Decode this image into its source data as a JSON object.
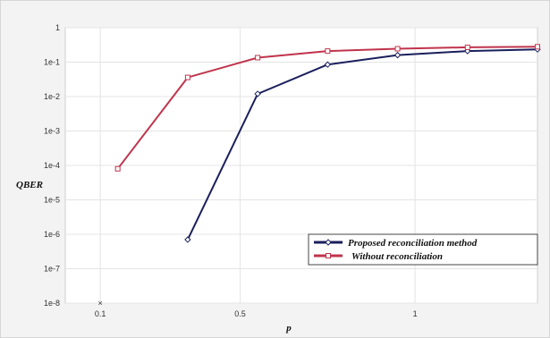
{
  "chart_data": {
    "type": "line",
    "title": "",
    "xlabel": "p",
    "ylabel": "QBER",
    "xlim": [
      0.0,
      1.35
    ],
    "y_scale": "log",
    "ylim": [
      1e-08,
      1
    ],
    "grid": true,
    "x_ticks": [
      {
        "value": 0.1,
        "label": "0.1"
      },
      {
        "value": 0.5,
        "label": "0.5"
      },
      {
        "value": 1.0,
        "label": "1"
      }
    ],
    "y_ticks": [
      {
        "value": 1,
        "label": "1"
      },
      {
        "value": 0.1,
        "label": "1e-1"
      },
      {
        "value": 0.01,
        "label": "1e-2"
      },
      {
        "value": 0.001,
        "label": "1e-3"
      },
      {
        "value": 0.0001,
        "label": "1e-4"
      },
      {
        "value": 1e-05,
        "label": "1e-5"
      },
      {
        "value": 1e-06,
        "label": "1e-6"
      },
      {
        "value": 1e-07,
        "label": "1e-7"
      },
      {
        "value": 1e-08,
        "label": "1e-8"
      }
    ],
    "legend_position": "bottom-right",
    "series": [
      {
        "name": "Proposed reconciliation method",
        "color": "#1a1f5c",
        "marker": "diamond",
        "x": [
          0.35,
          0.55,
          0.75,
          0.95,
          1.15,
          1.35
        ],
        "y": [
          7e-07,
          0.012,
          0.085,
          0.16,
          0.21,
          0.235
        ]
      },
      {
        "name": "Without reconciliation",
        "color": "#c0344c",
        "marker": "square",
        "x": [
          0.15,
          0.35,
          0.55,
          0.75,
          0.95,
          1.15,
          1.35
        ],
        "y": [
          8e-05,
          0.036,
          0.135,
          0.21,
          0.245,
          0.27,
          0.28
        ]
      }
    ],
    "annotations": [
      "×"
    ]
  }
}
